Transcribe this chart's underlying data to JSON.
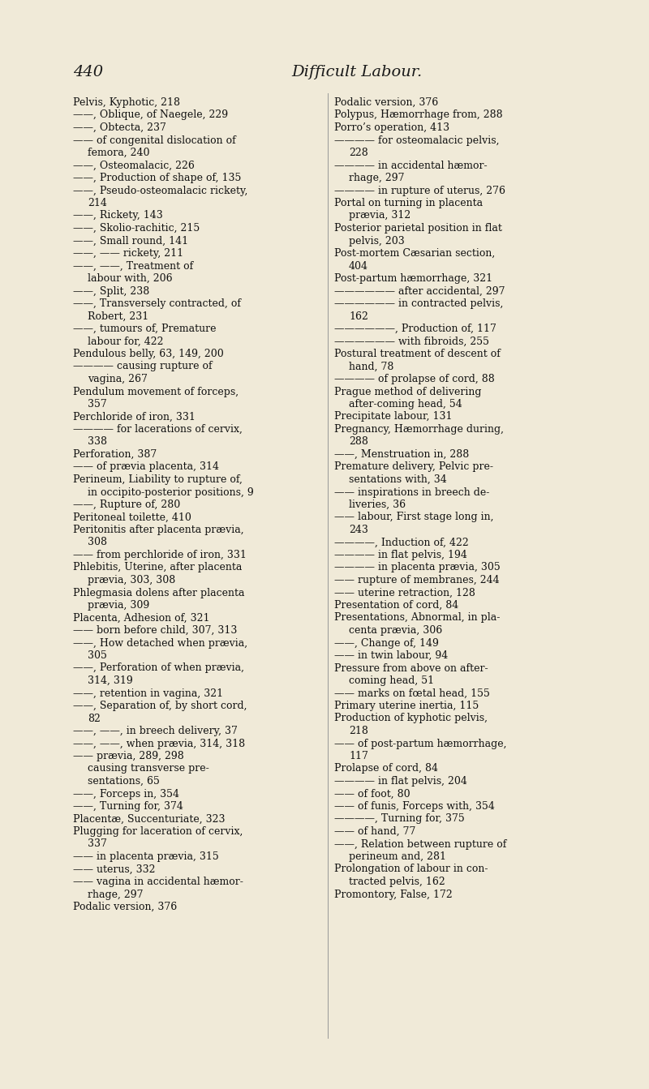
{
  "bg_color": "#f0ead8",
  "page_number": "440",
  "header_title": "Difficult Labour.",
  "fig_width": 8.0,
  "fig_height": 13.43,
  "dpi": 100,
  "left_col_lines": [
    [
      "",
      "Pelvis, Kyphotic, 218"
    ],
    [
      "",
      "——, Oblique, of Naegele, 229"
    ],
    [
      "",
      "——, Obtecta, 237"
    ],
    [
      "",
      "—— of congenital dislocation of"
    ],
    [
      "i",
      "femora, 240"
    ],
    [
      "",
      "——, Osteomalacic, 226"
    ],
    [
      "",
      "——, Production of shape of, 135"
    ],
    [
      "",
      "——, Pseudo-osteomalacic rickety,"
    ],
    [
      "i",
      "214"
    ],
    [
      "",
      "——, Rickety, 143"
    ],
    [
      "",
      "——, Skolio-rachitic, 215"
    ],
    [
      "",
      "——, Small round, 141"
    ],
    [
      "",
      "——, —— rickety, 211"
    ],
    [
      "",
      "——, ——, Treatment of"
    ],
    [
      "i",
      "labour with, 206"
    ],
    [
      "",
      "——, Split, 238"
    ],
    [
      "",
      "——, Transversely contracted, of"
    ],
    [
      "i",
      "Robert, 231"
    ],
    [
      "",
      "——, tumours of, Premature"
    ],
    [
      "i",
      "labour for, 422"
    ],
    [
      "",
      "Pendulous belly, 63, 149, 200"
    ],
    [
      "",
      "———— causing rupture of"
    ],
    [
      "i",
      "vagina, 267"
    ],
    [
      "",
      "Pendulum movement of forceps,"
    ],
    [
      "i",
      "357"
    ],
    [
      "",
      "Perchloride of iron, 331"
    ],
    [
      "",
      "———— for lacerations of cervix,"
    ],
    [
      "i",
      "338"
    ],
    [
      "",
      "Perforation, 387"
    ],
    [
      "",
      "—— of prævia placenta, 314"
    ],
    [
      "",
      "Perineum, Liability to rupture of,"
    ],
    [
      "i",
      "in occipito-posterior positions, 9"
    ],
    [
      "",
      "——, Rupture of, 280"
    ],
    [
      "",
      "Peritoneal toilette, 410"
    ],
    [
      "",
      "Peritonitis after placenta prævia,"
    ],
    [
      "i",
      "308"
    ],
    [
      "",
      "—— from perchloride of iron, 331"
    ],
    [
      "",
      "Phlebitis, Uterine, after placenta"
    ],
    [
      "i",
      "prævia, 303, 308"
    ],
    [
      "",
      "Phlegmasia dolens after placenta"
    ],
    [
      "i",
      "prævia, 309"
    ],
    [
      "",
      "Placenta, Adhesion of, 321"
    ],
    [
      "",
      "—— born before child, 307, 313"
    ],
    [
      "",
      "——, How detached when prævia,"
    ],
    [
      "i",
      "305"
    ],
    [
      "",
      "——, Perforation of when prævia,"
    ],
    [
      "i",
      "314, 319"
    ],
    [
      "",
      "——, retention in vagina, 321"
    ],
    [
      "",
      "——, Separation of, by short cord,"
    ],
    [
      "i",
      "82"
    ],
    [
      "",
      "——, ——, in breech delivery, 37"
    ],
    [
      "",
      "——, ——, when prævia, 314, 318"
    ],
    [
      "",
      "—— prævia, 289, 298"
    ],
    [
      "i",
      "causing transverse pre-"
    ],
    [
      "i",
      "sentations, 65"
    ],
    [
      "",
      "——, Forceps in, 354"
    ],
    [
      "",
      "——, Turning for, 374"
    ],
    [
      "",
      "Placentæ, Succenturiate, 323"
    ],
    [
      "",
      "Plugging for laceration of cervix,"
    ],
    [
      "i",
      "337"
    ],
    [
      "",
      "—— in placenta prævia, 315"
    ],
    [
      "",
      "—— uterus, 332"
    ],
    [
      "",
      "—— vagina in accidental hæmor-"
    ],
    [
      "i",
      "rhage, 297"
    ],
    [
      "",
      "Podalic version, 376"
    ]
  ],
  "right_col_lines": [
    [
      "",
      "Podalic version, 376"
    ],
    [
      "",
      "Polypus, Hæmorrhage from, 288"
    ],
    [
      "",
      "Porro’s operation, 413"
    ],
    [
      "",
      "———— for osteomalacic pelvis,"
    ],
    [
      "i",
      "228"
    ],
    [
      "",
      "———— in accidental hæmor-"
    ],
    [
      "i",
      "rhage, 297"
    ],
    [
      "",
      "———— in rupture of uterus, 276"
    ],
    [
      "",
      "Portal on turning in placenta"
    ],
    [
      "i",
      "prævia, 312"
    ],
    [
      "",
      "Posterior parietal position in flat"
    ],
    [
      "i",
      "pelvis, 203"
    ],
    [
      "",
      "Post-mortem Cæsarian section,"
    ],
    [
      "i",
      "404"
    ],
    [
      "",
      "Post-partum hæmorrhage, 321"
    ],
    [
      "",
      "—————— after accidental, 297"
    ],
    [
      "",
      "—————— in contracted pelvis,"
    ],
    [
      "i",
      "162"
    ],
    [
      "",
      "——————, Production of, 117"
    ],
    [
      "",
      "—————— with fibroids, 255"
    ],
    [
      "",
      "Postural treatment of descent of"
    ],
    [
      "i",
      "hand, 78"
    ],
    [
      "",
      "———— of prolapse of cord, 88"
    ],
    [
      "",
      "Prague method of delivering"
    ],
    [
      "i",
      "after-coming head, 54"
    ],
    [
      "",
      "Precipitate labour, 131"
    ],
    [
      "",
      "Pregnancy, Hæmorrhage during,"
    ],
    [
      "i",
      "288"
    ],
    [
      "",
      "——, Menstruation in, 288"
    ],
    [
      "",
      "Premature delivery, Pelvic pre-"
    ],
    [
      "i",
      "sentations with, 34"
    ],
    [
      "",
      "—— inspirations in breech de-"
    ],
    [
      "i",
      "liveries, 36"
    ],
    [
      "",
      "—— labour, First stage long in,"
    ],
    [
      "i",
      "243"
    ],
    [
      "",
      "————, Induction of, 422"
    ],
    [
      "",
      "———— in flat pelvis, 194"
    ],
    [
      "",
      "———— in placenta prævia, 305"
    ],
    [
      "",
      "—— rupture of membranes, 244"
    ],
    [
      "",
      "—— uterine retraction, 128"
    ],
    [
      "",
      "Presentation of cord, 84"
    ],
    [
      "",
      "Presentations, Abnormal, in pla-"
    ],
    [
      "i",
      "centa prævia, 306"
    ],
    [
      "",
      "——, Change of, 149"
    ],
    [
      "",
      "—— in twin labour, 94"
    ],
    [
      "",
      "Pressure from above on after-"
    ],
    [
      "i",
      "coming head, 51"
    ],
    [
      "",
      "—— marks on fœtal head, 155"
    ],
    [
      "",
      "Primary uterine inertia, 115"
    ],
    [
      "",
      "Production of kyphotic pelvis,"
    ],
    [
      "i",
      "218"
    ],
    [
      "",
      "—— of post-partum hæmorrhage,"
    ],
    [
      "i",
      "117"
    ],
    [
      "",
      "Prolapse of cord, 84"
    ],
    [
      "",
      "———— in flat pelvis, 204"
    ],
    [
      "",
      "—— of foot, 80"
    ],
    [
      "",
      "—— of funis, Forceps with, 354"
    ],
    [
      "",
      "————, Turning for, 375"
    ],
    [
      "",
      "—— of hand, 77"
    ],
    [
      "",
      "——, Relation between rupture of"
    ],
    [
      "i",
      "perineum and, 281"
    ],
    [
      "",
      "Prolongation of labour in con-"
    ],
    [
      "i",
      "tracted pelvis, 162"
    ],
    [
      "",
      "Promontory, False, 172"
    ]
  ]
}
